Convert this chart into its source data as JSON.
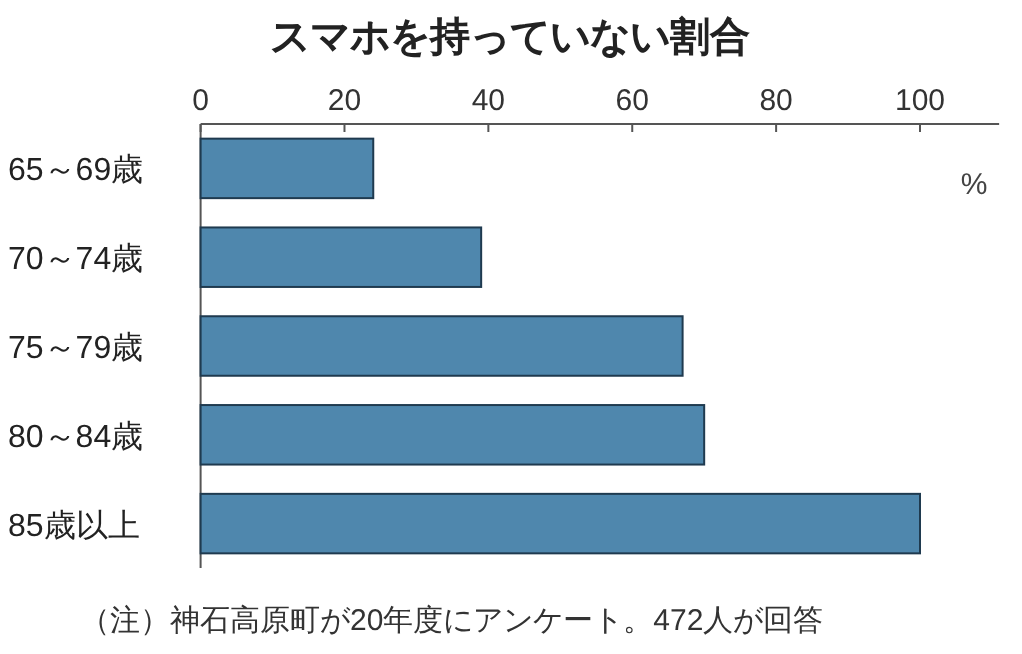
{
  "chart_data": {
    "type": "bar",
    "orientation": "horizontal",
    "title": "スマホを持っていない割合",
    "categories": [
      "65～69歳",
      "70～74歳",
      "75～79歳",
      "80～84歳",
      "85歳以上"
    ],
    "values": [
      24,
      39,
      67,
      70,
      100
    ],
    "color": "#4f87ad",
    "xlim": [
      0,
      111
    ],
    "xticks": [
      0,
      20,
      40,
      60,
      80,
      100
    ],
    "xlabel": "%",
    "annotations": [
      "（注）神石高原町が20年度にアンケート。472人が回答"
    ]
  }
}
